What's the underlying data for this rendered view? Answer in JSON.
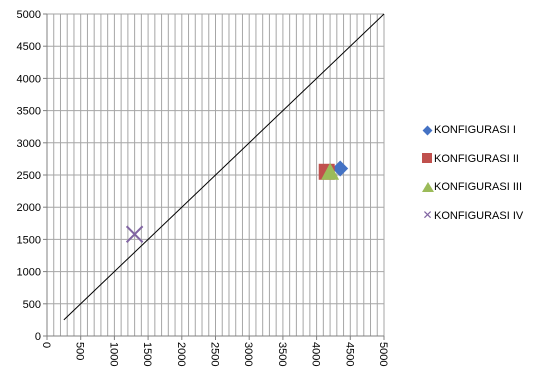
{
  "chart_data": {
    "type": "scatter",
    "title": "",
    "xlabel": "",
    "ylabel": "",
    "xlim": [
      0,
      5000
    ],
    "ylim": [
      0,
      5000
    ],
    "x_ticks": [
      0,
      500,
      1000,
      1500,
      2000,
      2500,
      3000,
      3500,
      4000,
      4500,
      5000
    ],
    "y_ticks": [
      0,
      500,
      1000,
      1500,
      2000,
      2500,
      3000,
      3500,
      4000,
      4500,
      5000
    ],
    "x_minor_step": 100,
    "grid": true,
    "legend_position": "right",
    "reference_line": {
      "x": [
        250,
        5000
      ],
      "y": [
        250,
        5000
      ],
      "color": "#000000"
    },
    "series": [
      {
        "name": "KONFIGURASI I",
        "marker": "diamond",
        "color": "#4472C4",
        "x": [
          4350
        ],
        "y": [
          2600
        ]
      },
      {
        "name": "KONFIGURASI II",
        "marker": "square",
        "color": "#C0504D",
        "x": [
          4150
        ],
        "y": [
          2550
        ]
      },
      {
        "name": "KONFIGURASI III",
        "marker": "triangle",
        "color": "#9BBB59",
        "x": [
          4200
        ],
        "y": [
          2550
        ]
      },
      {
        "name": "KONFIGURASI IV",
        "marker": "x",
        "color": "#8064A2",
        "x": [
          1300
        ],
        "y": [
          1580
        ]
      }
    ]
  }
}
